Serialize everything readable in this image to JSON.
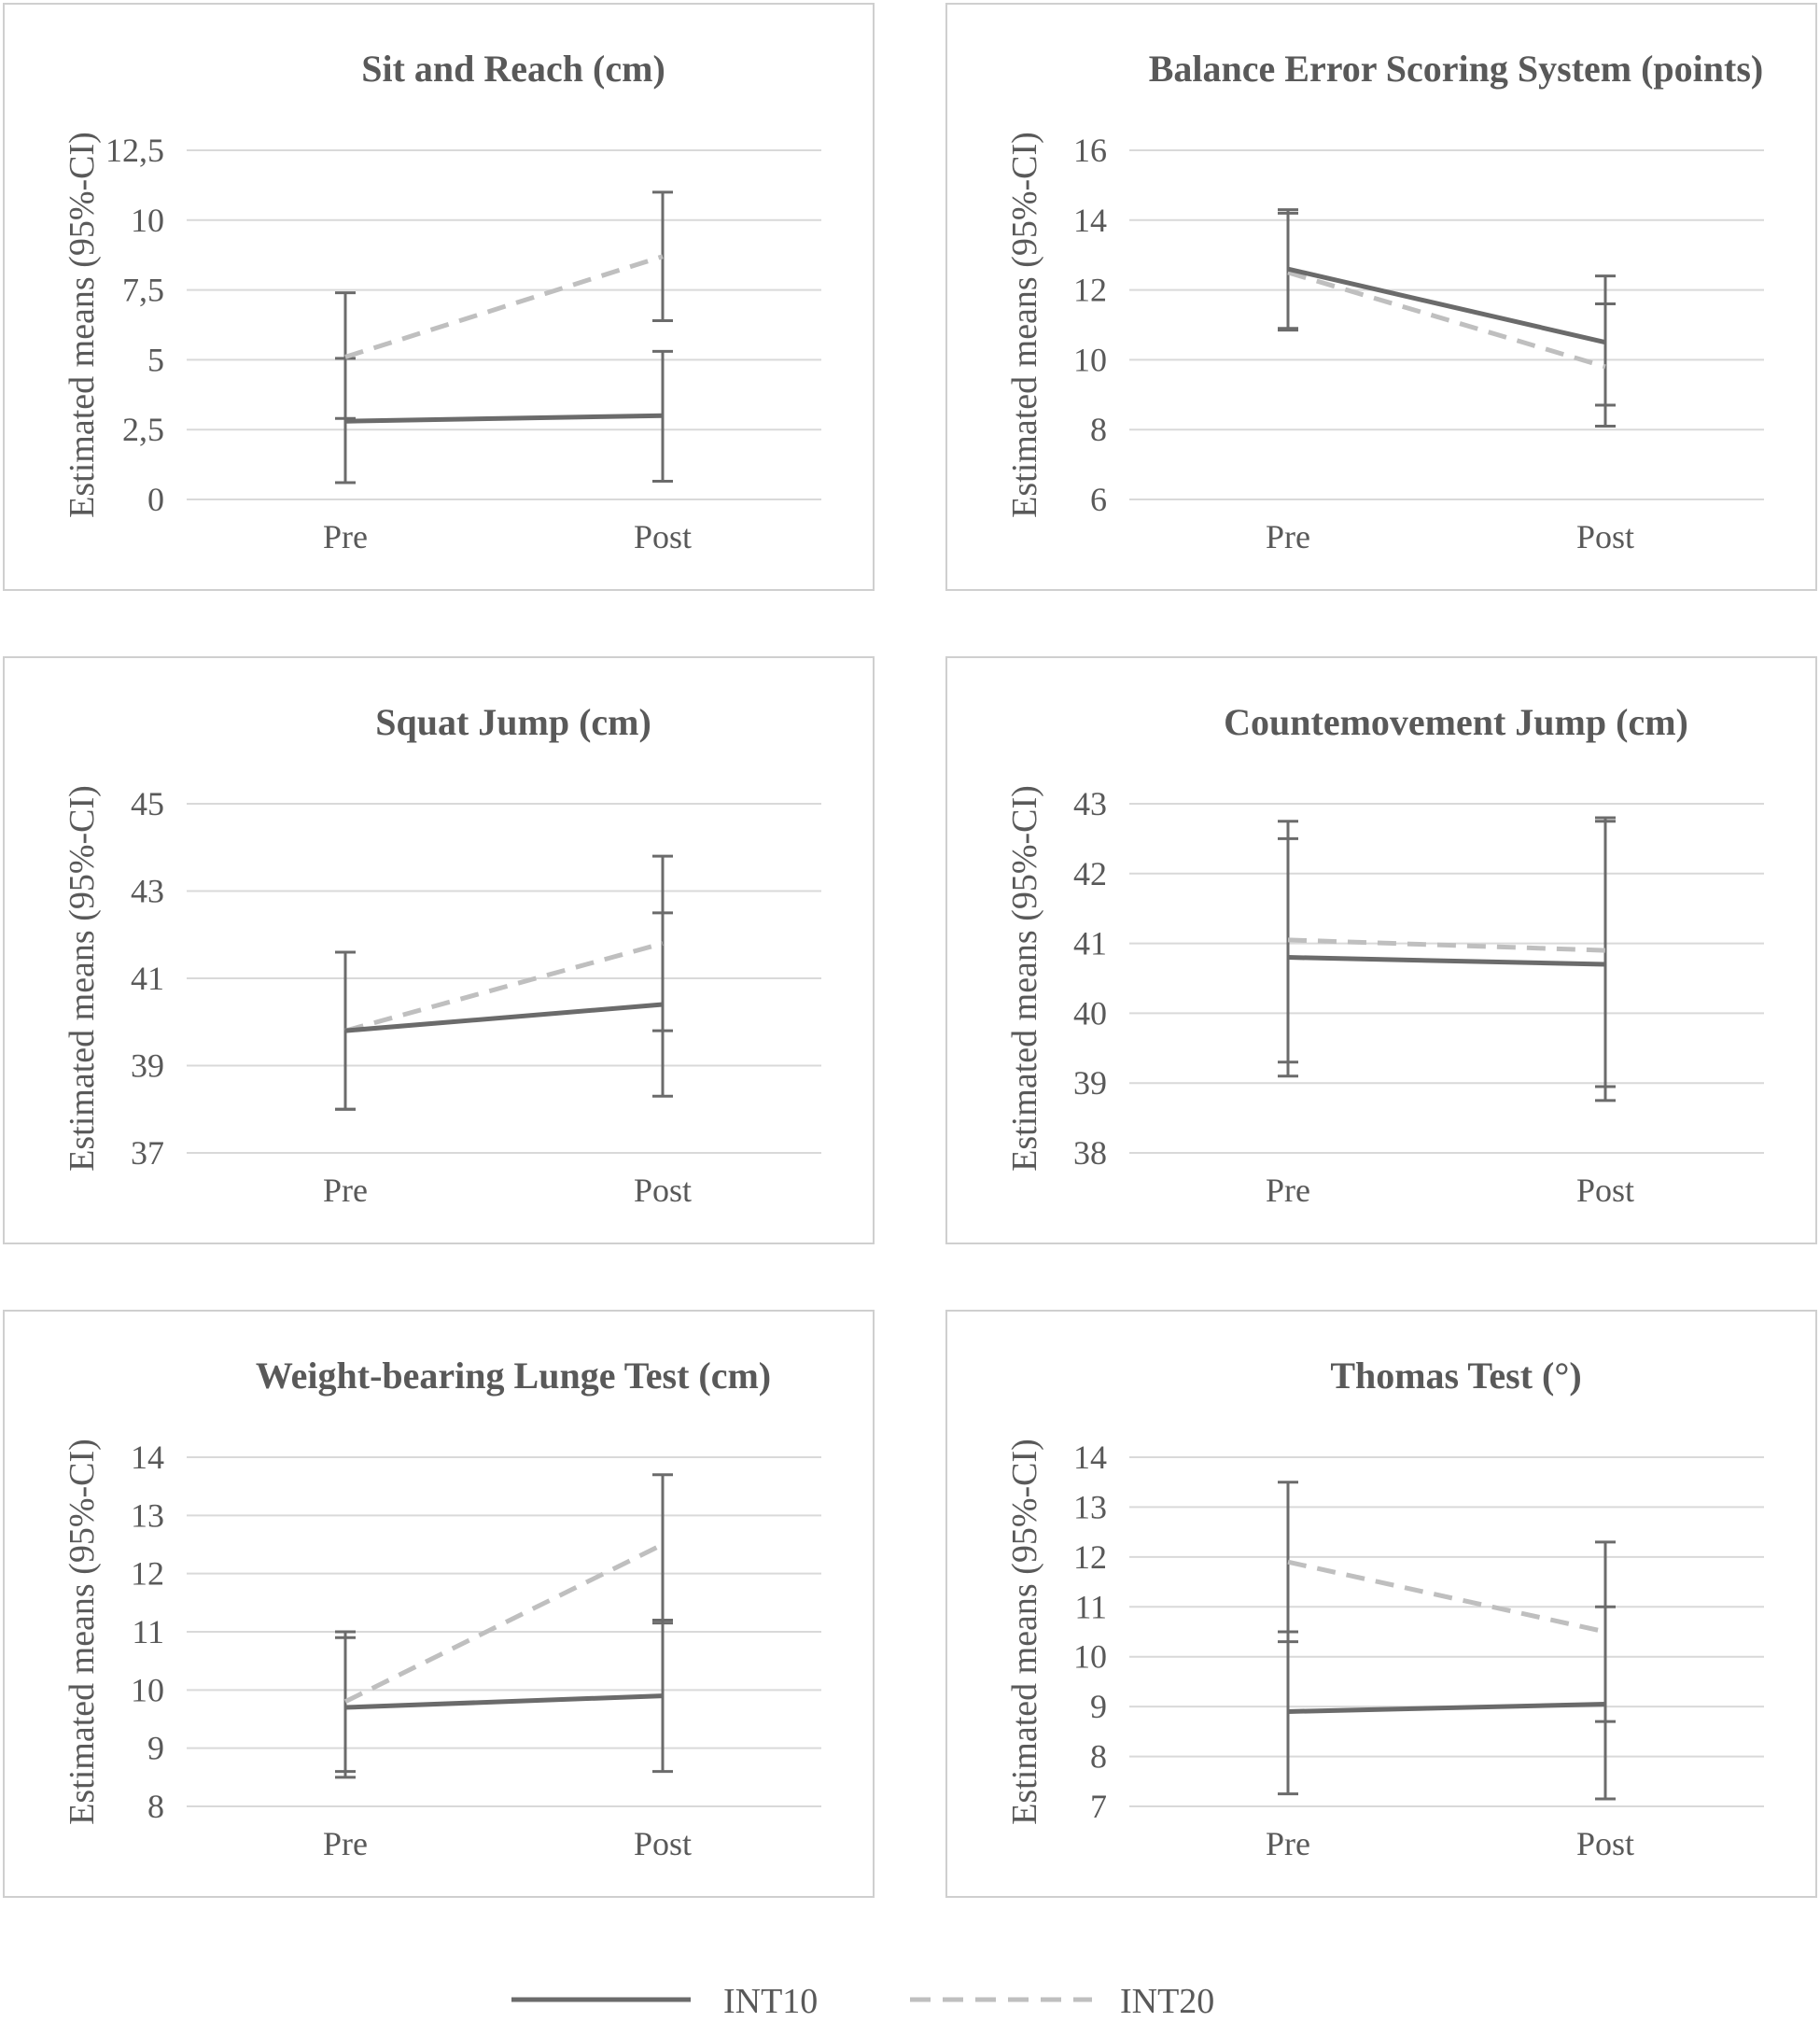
{
  "legend": {
    "series1": "INT10",
    "series2": "INT20"
  },
  "colors": {
    "int10": "#6b6b6b",
    "int20": "#bfbfbf",
    "text": "#595959",
    "grid": "#d9d9d9",
    "border": "#cfcfcf"
  },
  "chart_data": [
    {
      "type": "line",
      "title": "Sit and Reach (cm)",
      "ylabel": "Estimated means (95%-CI)",
      "xlabel": "",
      "categories": [
        "Pre",
        "Post"
      ],
      "yticks": [
        0,
        2.5,
        5,
        7.5,
        10,
        12.5
      ],
      "yticklabels": [
        "0",
        "2,5",
        "5",
        "7,5",
        "10",
        "12,5"
      ],
      "ylim": [
        0,
        12.5
      ],
      "series": [
        {
          "name": "INT10",
          "values": [
            2.8,
            3.0
          ],
          "ci_low": [
            0.6,
            0.65
          ],
          "ci_high": [
            5.05,
            5.3
          ]
        },
        {
          "name": "INT20",
          "values": [
            5.1,
            8.7
          ],
          "ci_low": [
            2.9,
            6.4
          ],
          "ci_high": [
            7.4,
            11.0
          ]
        }
      ]
    },
    {
      "type": "line",
      "title": "Balance Error Scoring System (points)",
      "ylabel": "Estimated means (95%-CI)",
      "xlabel": "",
      "categories": [
        "Pre",
        "Post"
      ],
      "yticks": [
        6,
        8,
        10,
        12,
        14,
        16
      ],
      "yticklabels": [
        "6",
        "8",
        "10",
        "12",
        "14",
        "16"
      ],
      "ylim": [
        6,
        16
      ],
      "series": [
        {
          "name": "INT10",
          "values": [
            12.6,
            10.5
          ],
          "ci_low": [
            10.9,
            8.7
          ],
          "ci_high": [
            14.3,
            12.4
          ]
        },
        {
          "name": "INT20",
          "values": [
            12.5,
            9.8
          ],
          "ci_low": [
            10.85,
            8.1
          ],
          "ci_high": [
            14.2,
            11.6
          ]
        }
      ]
    },
    {
      "type": "line",
      "title": "Squat Jump (cm)",
      "ylabel": "Estimated means (95%-CI)",
      "xlabel": "",
      "categories": [
        "Pre",
        "Post"
      ],
      "yticks": [
        37,
        39,
        41,
        43,
        45
      ],
      "yticklabels": [
        "37",
        "39",
        "41",
        "43",
        "45"
      ],
      "ylim": [
        37,
        45
      ],
      "series": [
        {
          "name": "INT10",
          "values": [
            39.8,
            40.4
          ],
          "ci_low": [
            38.0,
            38.3
          ],
          "ci_high": [
            41.6,
            42.5
          ]
        },
        {
          "name": "INT20",
          "values": [
            39.8,
            41.8
          ],
          "ci_low": [
            38.0,
            39.8
          ],
          "ci_high": [
            41.6,
            43.8
          ]
        }
      ]
    },
    {
      "type": "line",
      "title": "Countemovement Jump (cm)",
      "ylabel": "Estimated means (95%-CI)",
      "xlabel": "",
      "categories": [
        "Pre",
        "Post"
      ],
      "yticks": [
        38,
        39,
        40,
        41,
        42,
        43
      ],
      "yticklabels": [
        "38",
        "39",
        "40",
        "41",
        "42",
        "43"
      ],
      "ylim": [
        38,
        43
      ],
      "series": [
        {
          "name": "INT10",
          "values": [
            40.8,
            40.7
          ],
          "ci_low": [
            39.1,
            38.75
          ],
          "ci_high": [
            42.5,
            42.75
          ]
        },
        {
          "name": "INT20",
          "values": [
            41.05,
            40.9
          ],
          "ci_low": [
            39.3,
            38.95
          ],
          "ci_high": [
            42.75,
            42.8
          ]
        }
      ]
    },
    {
      "type": "line",
      "title": "Weight-bearing Lunge Test (cm)",
      "ylabel": "Estimated means (95%-CI)",
      "xlabel": "",
      "categories": [
        "Pre",
        "Post"
      ],
      "yticks": [
        8,
        9,
        10,
        11,
        12,
        13,
        14
      ],
      "yticklabels": [
        "8",
        "9",
        "10",
        "11",
        "12",
        "13",
        "14"
      ],
      "ylim": [
        8,
        14
      ],
      "series": [
        {
          "name": "INT10",
          "values": [
            9.7,
            9.9
          ],
          "ci_low": [
            8.5,
            8.6
          ],
          "ci_high": [
            10.9,
            11.2
          ]
        },
        {
          "name": "INT20",
          "values": [
            9.8,
            12.5
          ],
          "ci_low": [
            8.6,
            11.15
          ],
          "ci_high": [
            11.0,
            13.7
          ]
        }
      ]
    },
    {
      "type": "line",
      "title": "Thomas Test (°)",
      "ylabel": "Estimated means (95%-CI)",
      "xlabel": "",
      "categories": [
        "Pre",
        "Post"
      ],
      "yticks": [
        7,
        8,
        9,
        10,
        11,
        12,
        13,
        14
      ],
      "yticklabels": [
        "7",
        "8",
        "9",
        "10",
        "11",
        "12",
        "13",
        "14"
      ],
      "ylim": [
        7,
        14
      ],
      "series": [
        {
          "name": "INT10",
          "values": [
            8.9,
            9.05
          ],
          "ci_low": [
            7.25,
            7.15
          ],
          "ci_high": [
            10.5,
            11.0
          ]
        },
        {
          "name": "INT20",
          "values": [
            11.9,
            10.5
          ],
          "ci_low": [
            10.3,
            8.7
          ],
          "ci_high": [
            13.5,
            12.3
          ]
        }
      ]
    }
  ]
}
